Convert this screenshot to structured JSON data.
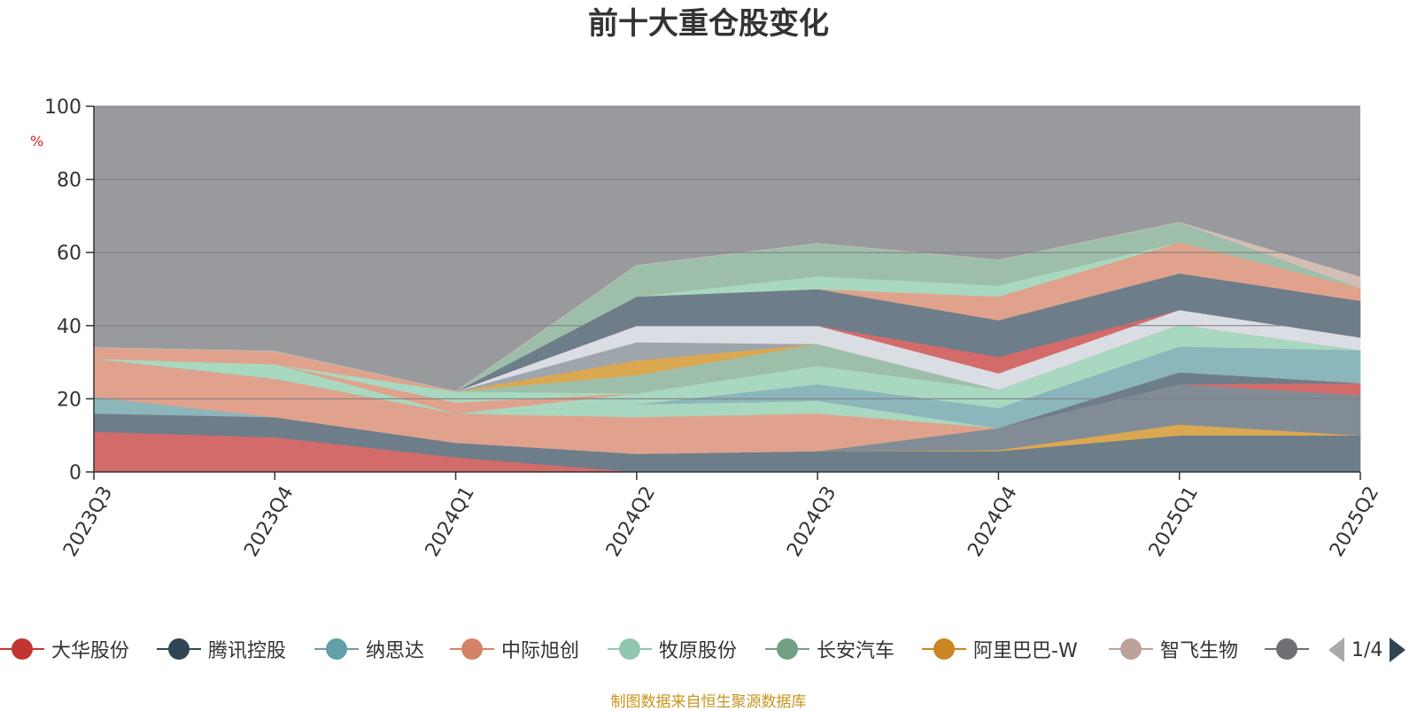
{
  "chart_data": {
    "type": "area",
    "title": "前十大重仓股变化",
    "ylabel": "%",
    "ylim": [
      0,
      100
    ],
    "yticks": [
      0,
      20,
      40,
      60,
      80,
      100
    ],
    "x": [
      "2023Q3",
      "2023Q4",
      "2024Q1",
      "2024Q2",
      "2024Q3",
      "2024Q4",
      "2025Q1",
      "2025Q2"
    ],
    "grid": true,
    "background_fill": "#999a9e",
    "stacked": true,
    "series": [
      {
        "name": "大华股份",
        "color": "#d36b6b",
        "values": [
          11,
          9.5,
          4,
          0,
          0,
          0,
          0,
          0
        ]
      },
      {
        "name": "",
        "color": "#6e7d8a",
        "values": [
          5,
          5.5,
          4,
          5,
          5.7,
          5.7,
          10,
          10
        ]
      },
      {
        "name": "",
        "color": "#dba852",
        "values": [
          0,
          0,
          0,
          0,
          0,
          0.3,
          3,
          0
        ]
      },
      {
        "name": "",
        "color": "#818c96",
        "values": [
          0,
          0,
          0,
          0,
          0,
          6,
          11,
          11
        ]
      },
      {
        "name": "",
        "color": "#d36b6b",
        "values": [
          0,
          0,
          0,
          0,
          0,
          0,
          0,
          3.3
        ]
      },
      {
        "name": "",
        "color": "#6e7d8a",
        "values": [
          0,
          0,
          0,
          0,
          0,
          0,
          3.3,
          0
        ]
      },
      {
        "name": "纳思达",
        "color": "#8bb6bb",
        "values": [
          4.5,
          0,
          0,
          0,
          0,
          0,
          0,
          0
        ]
      },
      {
        "name": "中际旭创",
        "color": "#e0a28c",
        "values": [
          10.5,
          10.5,
          8,
          10,
          10.3,
          0,
          0,
          0
        ]
      },
      {
        "name": "",
        "color": "#a9d8c0",
        "values": [
          0,
          0,
          0,
          3.5,
          3.5,
          0,
          0,
          0
        ]
      },
      {
        "name": "",
        "color": "#818c96",
        "values": [
          0,
          0,
          0,
          0,
          0,
          0,
          0,
          0
        ]
      },
      {
        "name": "",
        "color": "#8bb6bb",
        "values": [
          0,
          0,
          0,
          0,
          4.5,
          5.5,
          7,
          9
        ]
      },
      {
        "name": "",
        "color": "#a9d8c0",
        "values": [
          0,
          4,
          0,
          3,
          5,
          5,
          6,
          0
        ]
      },
      {
        "name": "",
        "color": "#e0a28c",
        "values": [
          0,
          0,
          3,
          0,
          0,
          0,
          0,
          0
        ]
      },
      {
        "name": "牧原股份",
        "color": "#a9d8c0",
        "values": [
          0,
          0,
          3,
          0,
          0,
          0,
          0,
          0
        ]
      },
      {
        "name": "长安汽车",
        "color": "#9dbfa9",
        "values": [
          0,
          0,
          0,
          5,
          6,
          0,
          0,
          0
        ]
      },
      {
        "name": "",
        "color": "#dba852",
        "values": [
          0,
          0,
          0,
          4,
          0,
          0,
          0,
          0
        ]
      },
      {
        "name": "",
        "color": "#e0a28c",
        "values": [
          3,
          3.5,
          0,
          0,
          0,
          0,
          0,
          0
        ]
      },
      {
        "name": "",
        "color": "#9ea5ab",
        "values": [
          0,
          0,
          0,
          5,
          0,
          0,
          0,
          0
        ]
      },
      {
        "name": "",
        "color": "#dadde3",
        "values": [
          0,
          0,
          0,
          4.5,
          5,
          4.5,
          4,
          3.5
        ]
      },
      {
        "name": "",
        "color": "#d36b6b",
        "values": [
          0,
          0,
          0,
          0,
          0,
          4.5,
          0,
          0
        ]
      },
      {
        "name": "",
        "color": "#6e7d8a",
        "values": [
          0,
          0,
          0,
          8,
          10,
          10,
          10,
          10
        ]
      },
      {
        "name": "",
        "color": "#e0a28c",
        "values": [
          0,
          0,
          0,
          0,
          0,
          6.5,
          8.5,
          3.5
        ]
      },
      {
        "name": "",
        "color": "#a9d8c0",
        "values": [
          0,
          0,
          0,
          0,
          3.5,
          3,
          0,
          0
        ]
      },
      {
        "name": "",
        "color": "#9dbfa9",
        "values": [
          0,
          0,
          0,
          8.5,
          9,
          7,
          5.5,
          0
        ]
      },
      {
        "name": "",
        "color": "#d4bdb5",
        "values": [
          0,
          0,
          0,
          0,
          0,
          0,
          0,
          3
        ]
      }
    ]
  },
  "legend": {
    "items": [
      {
        "label": "大华股份",
        "color": "#c23531"
      },
      {
        "label": "腾讯控股",
        "color": "#2f4554"
      },
      {
        "label": "纳思达",
        "color": "#61a0a8"
      },
      {
        "label": "中际旭创",
        "color": "#d48265"
      },
      {
        "label": "牧原股份",
        "color": "#91c7ae"
      },
      {
        "label": "长安汽车",
        "color": "#749f83"
      },
      {
        "label": "阿里巴巴-W",
        "color": "#ca8622"
      },
      {
        "label": "智飞生物",
        "color": "#bda29a"
      },
      {
        "label": "",
        "color": "#6e7074"
      }
    ],
    "page": "1/4"
  },
  "footer": {
    "source": "制图数据来自恒生聚源数据库"
  }
}
